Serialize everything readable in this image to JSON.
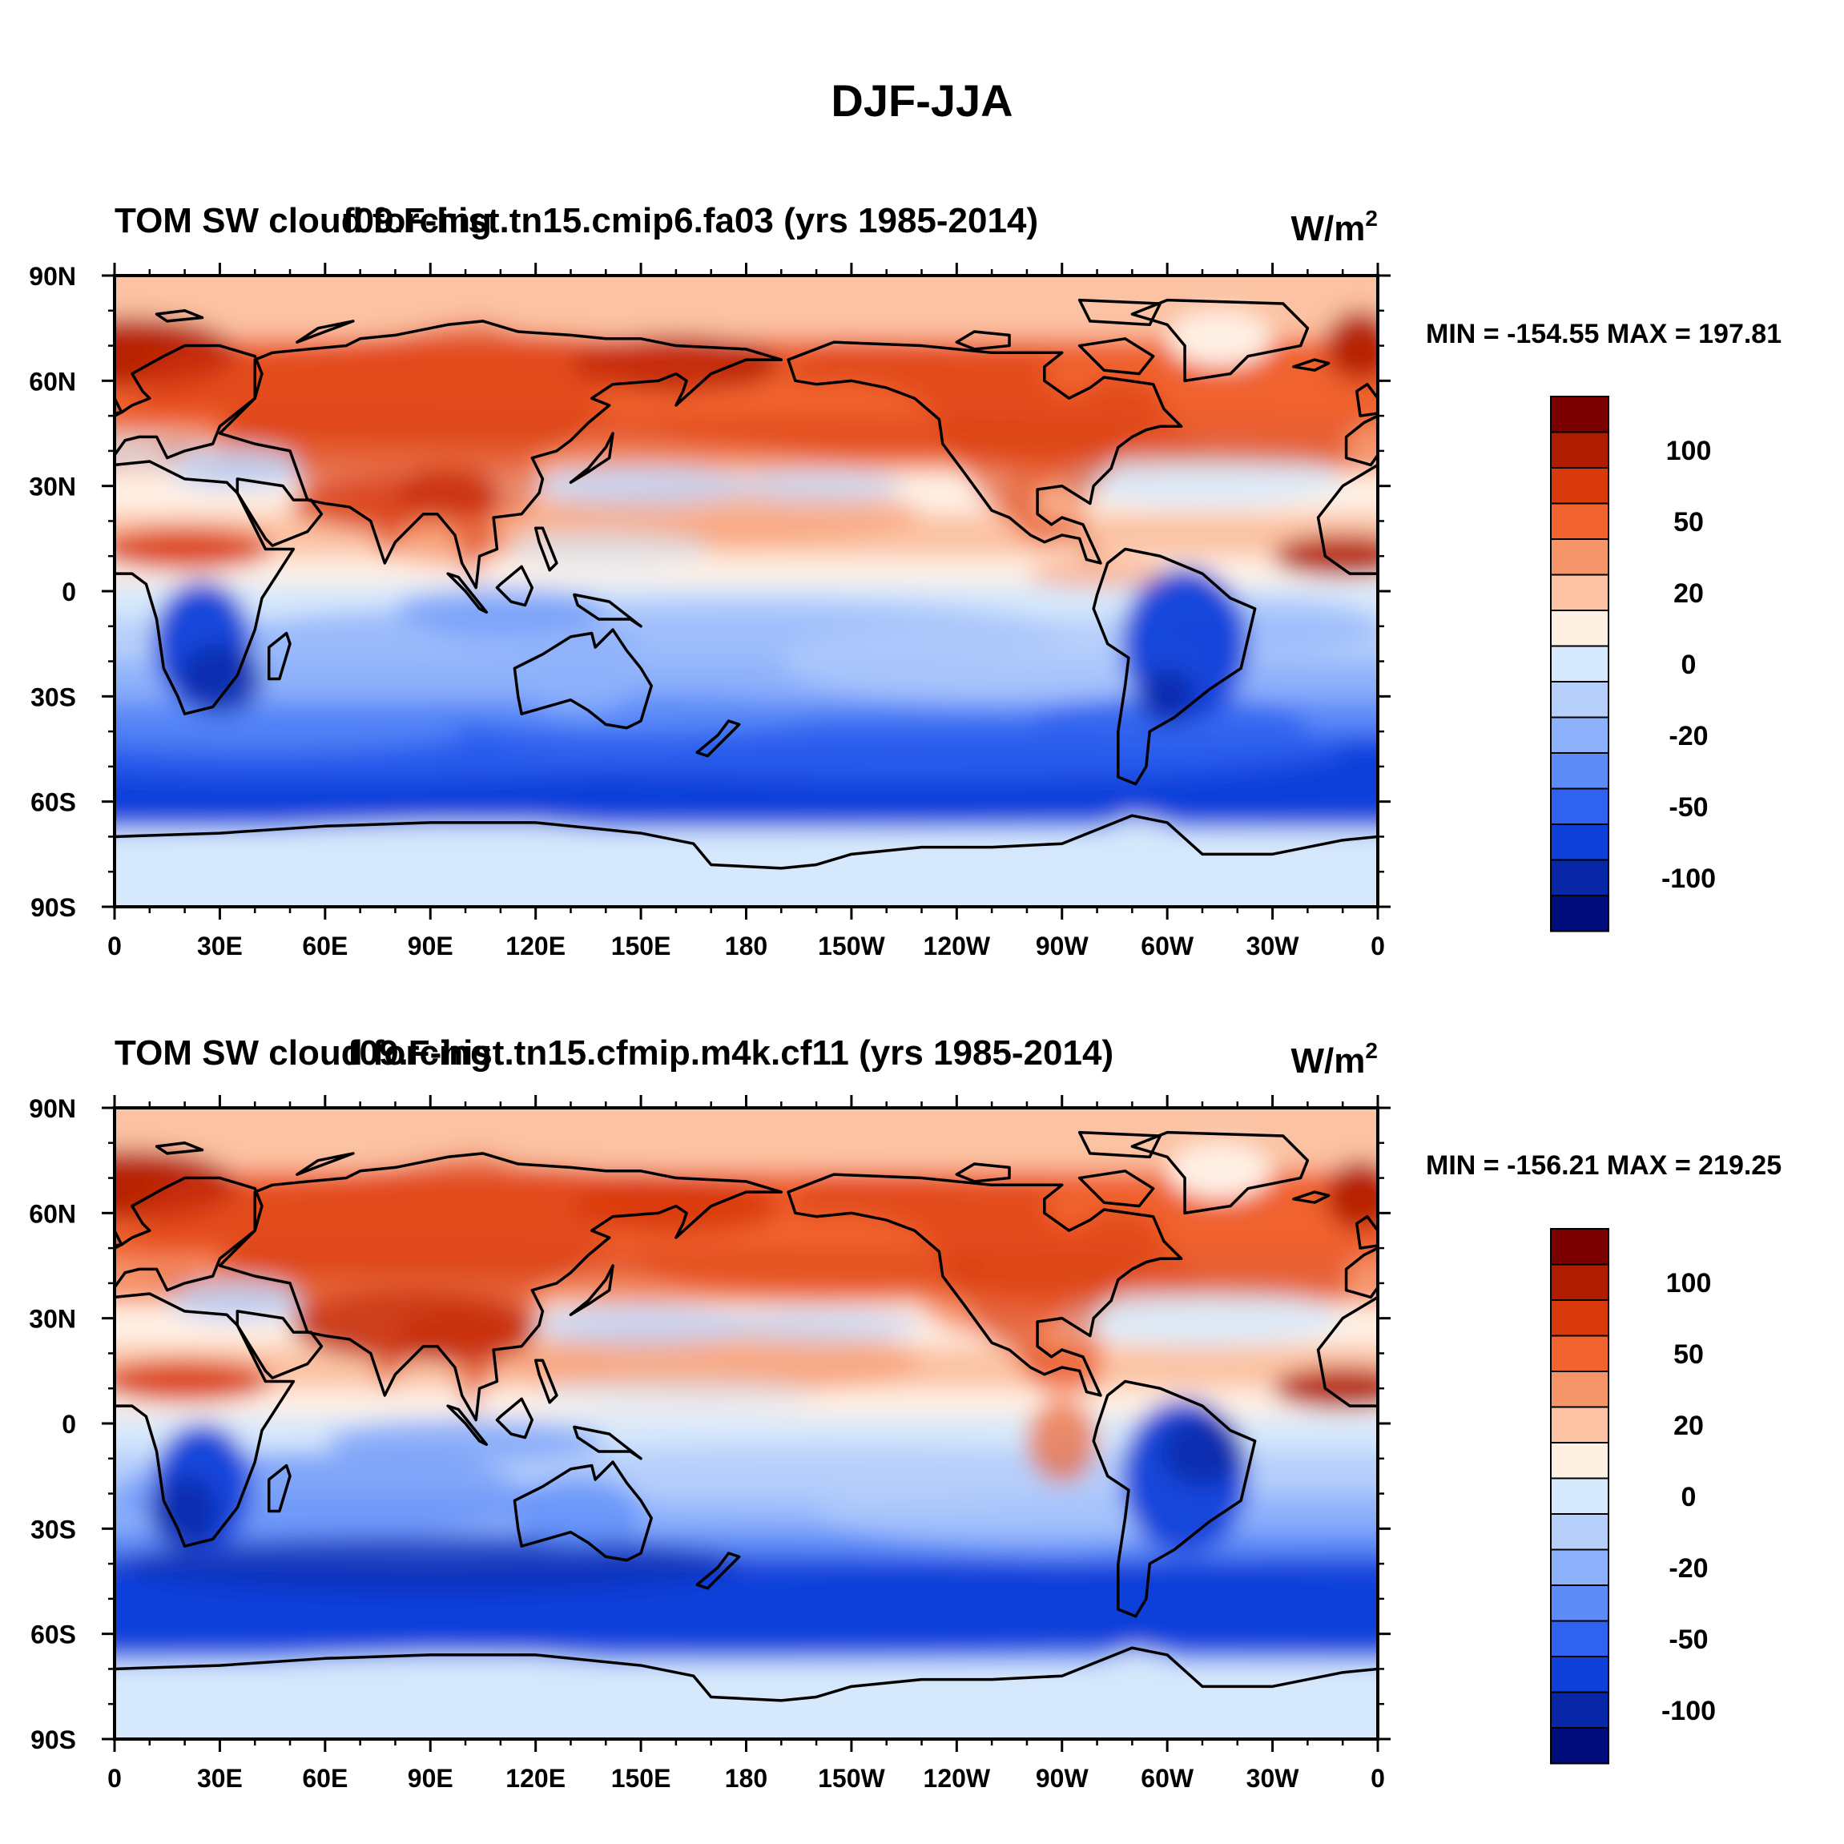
{
  "page": {
    "title": "DJF-JJA"
  },
  "chart_data": [
    {
      "type": "heatmap",
      "title_left": "TOM SW cloud forcing",
      "title_center": "f09.F-hist.tn15.cmip6.fa03 (yrs 1985-2014)",
      "units_base": "W/m",
      "units_exp": "2",
      "stats": "MIN = -154.55 MAX = 197.81",
      "min": -154.55,
      "max": 197.81,
      "x_ticks": [
        "0",
        "30E",
        "60E",
        "90E",
        "120E",
        "150E",
        "180",
        "150W",
        "120W",
        "90W",
        "60W",
        "30W",
        "0"
      ],
      "y_ticks": [
        "90N",
        "60N",
        "30N",
        "0",
        "30S",
        "60S",
        "90S"
      ],
      "x_range_deg": [
        0,
        360
      ],
      "y_range_deg": [
        90,
        -90
      ],
      "contour_levels": [
        -100,
        -50,
        -20,
        0,
        20,
        50,
        100
      ],
      "colorbar_labels": [
        "100",
        "50",
        "20",
        "0",
        "-20",
        "-50",
        "-100"
      ]
    },
    {
      "type": "heatmap",
      "title_left": "TOM SW cloud forcing",
      "title_center": "f09.F-hist.tn15.cfmip.m4k.cf11 (yrs 1985-2014)",
      "units_base": "W/m",
      "units_exp": "2",
      "stats": "MIN = -156.21 MAX = 219.25",
      "min": -156.21,
      "max": 219.25,
      "x_ticks": [
        "0",
        "30E",
        "60E",
        "90E",
        "120E",
        "150E",
        "180",
        "150W",
        "120W",
        "90W",
        "60W",
        "30W",
        "0"
      ],
      "y_ticks": [
        "90N",
        "60N",
        "30N",
        "0",
        "30S",
        "60S",
        "90S"
      ],
      "x_range_deg": [
        0,
        360
      ],
      "y_range_deg": [
        90,
        -90
      ],
      "contour_levels": [
        -100,
        -50,
        -20,
        0,
        20,
        50,
        100
      ],
      "colorbar_labels": [
        "100",
        "50",
        "20",
        "0",
        "-20",
        "-50",
        "-100"
      ]
    }
  ],
  "colors": {
    "colorbar": [
      "#7a0000",
      "#b01c00",
      "#d93a0c",
      "#f0622e",
      "#f6946a",
      "#fbc2a3",
      "#fff0e4",
      "#d6e8fb",
      "#b6cffb",
      "#8eb1fb",
      "#5d8bf8",
      "#2f62ef",
      "#0e3fd9",
      "#0727a6",
      "#010d7c"
    ]
  }
}
